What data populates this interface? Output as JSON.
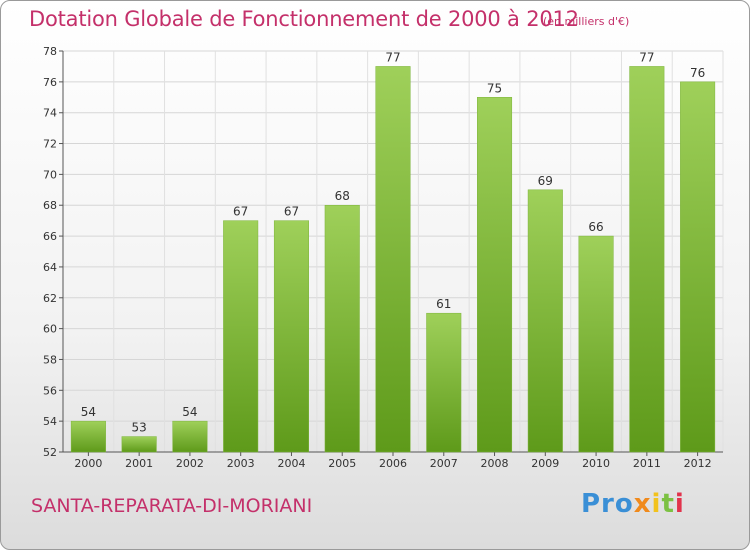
{
  "header": {
    "title": "Dotation Globale de Fonctionnement de 2000 à 2012",
    "unit": "(en milliers d'€)"
  },
  "footer": {
    "commune": "SANTA-REPARATA-DI-MORIANI",
    "logo_letters": [
      "Pro",
      "x",
      "i",
      "t",
      "i"
    ]
  },
  "colors": {
    "bar_top": "#9fd05a",
    "bar_bottom": "#5e9a1a",
    "title": "#c4306a"
  },
  "chart_data": {
    "type": "bar",
    "title": "Dotation Globale de Fonctionnement de 2000 à 2012",
    "xlabel": "",
    "ylabel": "",
    "categories": [
      "2000",
      "2001",
      "2002",
      "2003",
      "2004",
      "2005",
      "2006",
      "2007",
      "2008",
      "2009",
      "2010",
      "2011",
      "2012"
    ],
    "values": [
      54,
      53,
      54,
      67,
      67,
      68,
      77,
      61,
      75,
      69,
      66,
      77,
      76
    ],
    "ylim": [
      52,
      78
    ],
    "yticks": [
      52,
      54,
      56,
      58,
      60,
      62,
      64,
      66,
      68,
      70,
      72,
      74,
      76,
      78
    ],
    "grid": true,
    "legend": "none"
  }
}
